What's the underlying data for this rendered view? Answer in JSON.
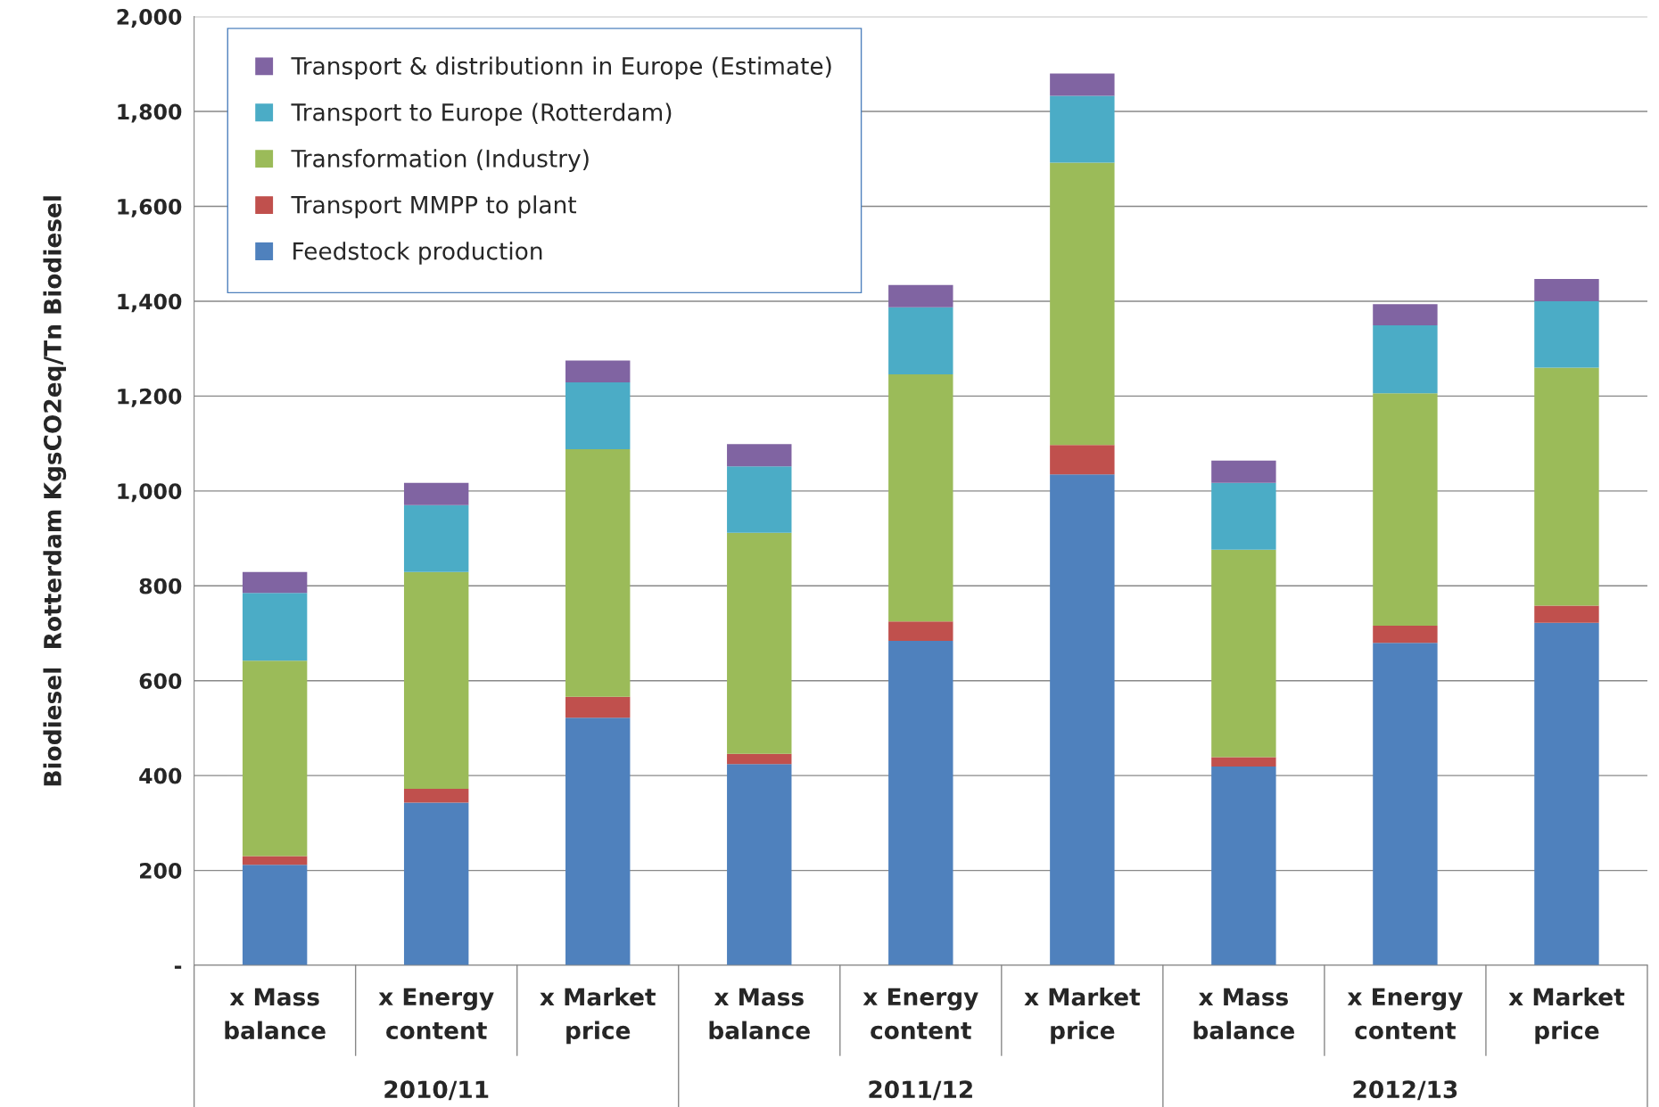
{
  "chart_data": {
    "type": "bar",
    "stacked": true,
    "ylabel": "Biodiesel  Rotterdam KgsCO2eq/Tn Biodiesel",
    "categories": [
      "x Mass\nbalance",
      "x Energy\ncontent",
      "x Market\nprice",
      "x Mass\nbalance",
      "x Energy\ncontent",
      "x Market\nprice",
      "x Mass\nbalance",
      "x Energy\ncontent",
      "x Market\nprice"
    ],
    "annotations": [
      "2010/11",
      "2011/12",
      "2012/13"
    ],
    "series": [
      {
        "name": "Feedstock production",
        "color": "#4f81bd",
        "values": [
          212,
          343,
          522,
          424,
          684,
          1035,
          419,
          680,
          722
        ]
      },
      {
        "name": "Transport MMPP to plant",
        "color": "#c0504d",
        "values": [
          18,
          29,
          44,
          22,
          41,
          62,
          20,
          36,
          36
        ]
      },
      {
        "name": "Transformation (Industry)",
        "color": "#9bbb59",
        "values": [
          412,
          457,
          522,
          466,
          521,
          595,
          437,
          490,
          502
        ]
      },
      {
        "name": "Transport to Europe (Rotterdam)",
        "color": "#4bacc6",
        "values": [
          143,
          141,
          141,
          140,
          141,
          141,
          141,
          143,
          140
        ]
      },
      {
        "name": "Transport & distributionn in Europe (Estimate)",
        "color": "#8064a2",
        "values": [
          44,
          47,
          46,
          47,
          47,
          47,
          47,
          45,
          47
        ]
      }
    ],
    "ylim": [
      0,
      2000
    ],
    "yticks": [
      {
        "value": 0,
        "label": "-"
      },
      {
        "value": 200,
        "label": "200"
      },
      {
        "value": 400,
        "label": "400"
      },
      {
        "value": 600,
        "label": "600"
      },
      {
        "value": 800,
        "label": "800"
      },
      {
        "value": 1000,
        "label": "1,000"
      },
      {
        "value": 1200,
        "label": "1,200"
      },
      {
        "value": 1400,
        "label": "1,400"
      },
      {
        "value": 1600,
        "label": "1,600"
      },
      {
        "value": 1800,
        "label": "1,800"
      },
      {
        "value": 2000,
        "label": "2,000"
      }
    ],
    "grid": "y",
    "legend": "top left"
  }
}
